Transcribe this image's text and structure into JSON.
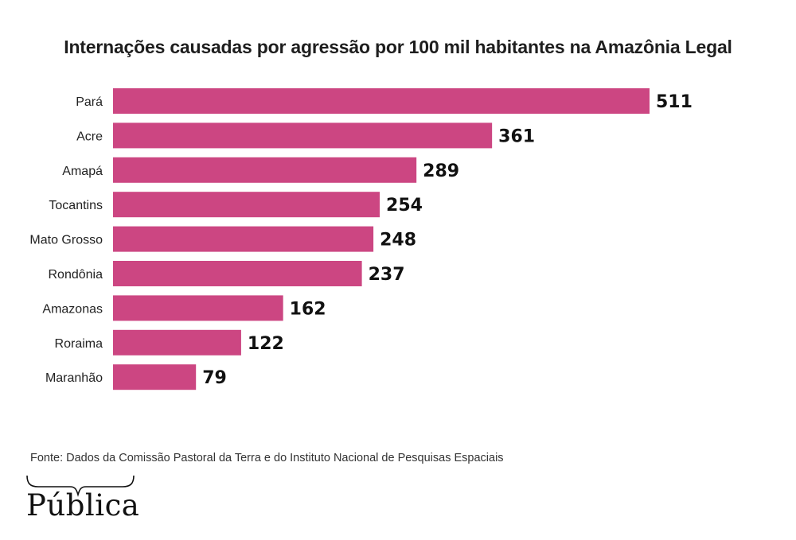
{
  "chart_data": {
    "type": "bar",
    "orientation": "horizontal",
    "title": "Internações causadas por agressão por 100 mil habitantes na Amazônia Legal",
    "categories": [
      "Pará",
      "Acre",
      "Amapá",
      "Tocantins",
      "Mato Grosso",
      "Rondônia",
      "Amazonas",
      "Roraima",
      "Maranhão"
    ],
    "values": [
      511,
      361,
      289,
      254,
      248,
      237,
      162,
      122,
      79
    ],
    "xlim": [
      0,
      511
    ],
    "grid": false,
    "bar_color": "#cc4682"
  },
  "source": "Fonte: Dados da Comissão Pastoral da Terra e do Instituto Nacional de Pesquisas Espaciais",
  "logo": {
    "text": "Pública"
  }
}
